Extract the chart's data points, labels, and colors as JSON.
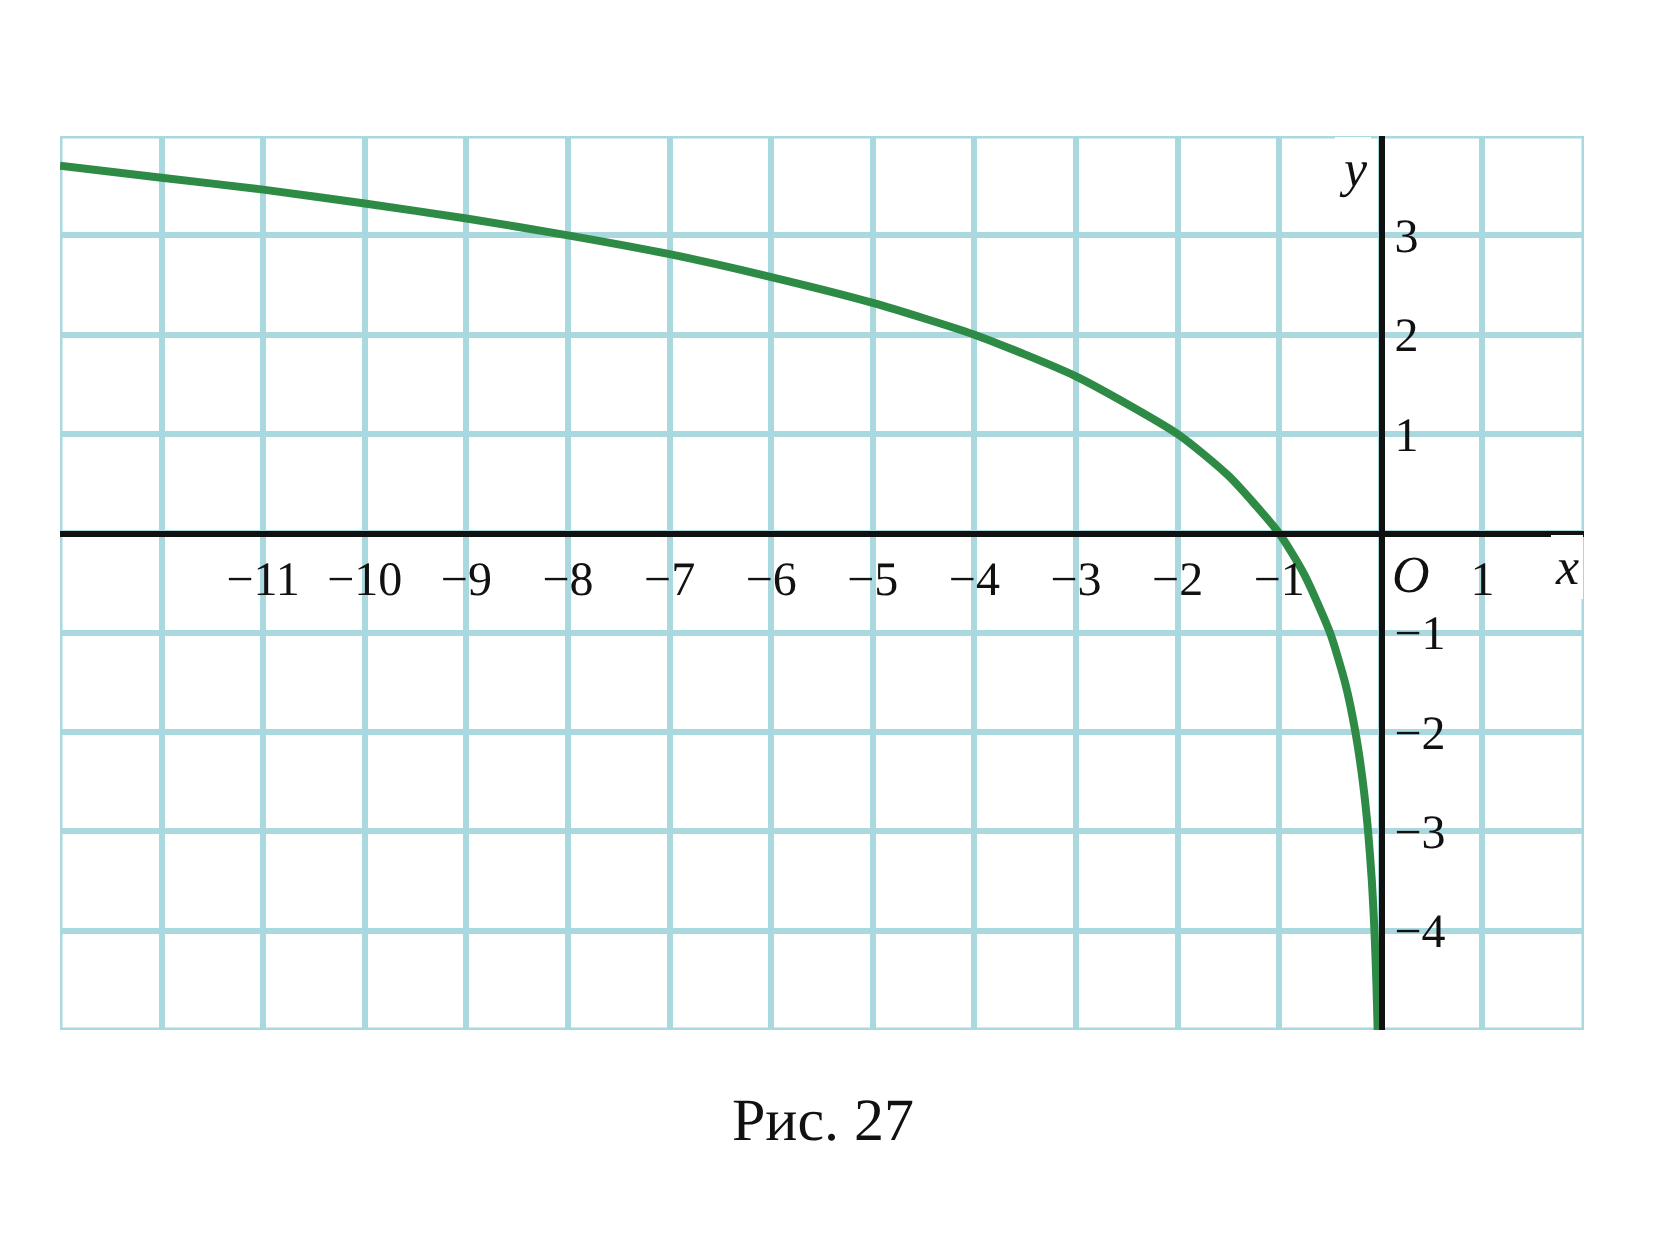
{
  "chart_data": {
    "type": "line",
    "x": [
      -13,
      -12,
      -11,
      -10,
      -9,
      -8,
      -7,
      -6,
      -5,
      -4,
      -3,
      -2,
      -1.5,
      -1,
      -0.75,
      -0.5,
      -0.35,
      -0.25,
      -0.177,
      -0.125,
      -0.088,
      -0.0625,
      -0.044,
      -0.031
    ],
    "series": [
      {
        "color": "#2e8b46",
        "values": [
          3.7,
          3.58,
          3.46,
          3.32,
          3.17,
          3.0,
          2.81,
          2.58,
          2.32,
          2.0,
          1.58,
          1.0,
          0.58,
          0.0,
          -0.42,
          -1.0,
          -1.51,
          -2.0,
          -2.5,
          -3.0,
          -3.5,
          -4.0,
          -4.5,
          -5.0
        ]
      }
    ],
    "xlim": [
      -13,
      2
    ],
    "ylim": [
      -5,
      4
    ],
    "xticks": [
      {
        "value": -13,
        "label": null
      },
      {
        "value": -12,
        "label": null
      },
      {
        "value": -11,
        "label": "−11"
      },
      {
        "value": -10,
        "label": "−10"
      },
      {
        "value": -9,
        "label": "−9"
      },
      {
        "value": -8,
        "label": "−8"
      },
      {
        "value": -7,
        "label": "−7"
      },
      {
        "value": -6,
        "label": "−6"
      },
      {
        "value": -5,
        "label": "−5"
      },
      {
        "value": -4,
        "label": "−4"
      },
      {
        "value": -3,
        "label": "−3"
      },
      {
        "value": -2,
        "label": "−2"
      },
      {
        "value": -1,
        "label": "−1"
      },
      {
        "value": 0,
        "label": null
      },
      1,
      {
        "value": 2,
        "label": null
      }
    ],
    "yticks": [
      {
        "value": -5,
        "label": null
      },
      {
        "value": -4,
        "label": "−4"
      },
      {
        "value": -3,
        "label": "−3"
      },
      {
        "value": -2,
        "label": "−2"
      },
      {
        "value": -1,
        "label": "−1"
      },
      {
        "value": 0,
        "label": null
      },
      1,
      2,
      3,
      {
        "value": 4,
        "label": null
      }
    ],
    "xlabel": "x",
    "ylabel": "y",
    "grid": true,
    "marker": "none",
    "line_style": "solid",
    "annotations": [
      "O",
      "Рис. 27"
    ]
  }
}
